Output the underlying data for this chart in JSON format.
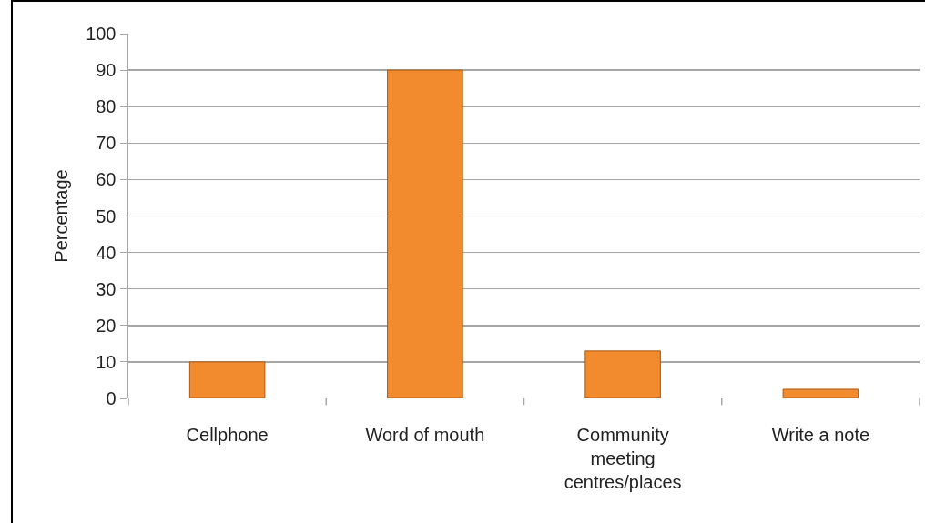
{
  "chart_data": {
    "type": "bar",
    "ylabel": "Percentage",
    "categories": [
      "Cellphone",
      "Word of mouth",
      "Community meeting centres/places",
      "Write a note"
    ],
    "values": [
      10,
      90,
      13,
      2.5
    ],
    "color": "#f28a2e",
    "ylim": [
      0,
      100
    ],
    "yticks": [
      0,
      10,
      20,
      30,
      40,
      50,
      60,
      70,
      80,
      90,
      100
    ],
    "grid": "y"
  }
}
